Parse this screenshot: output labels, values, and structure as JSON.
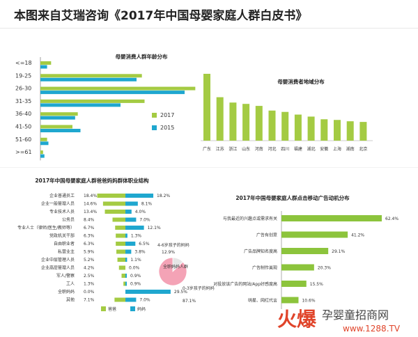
{
  "page": {
    "title": "本图来自艾瑞咨询《2017年中国母婴家庭人群白皮书》"
  },
  "colors": {
    "green": "#a4cb43",
    "cyan": "#1fa7cf",
    "pink": "#f4a3b6",
    "accent_red": "#e0442a"
  },
  "watermark": {
    "brand": "火爆",
    "name": "孕婴童招商网",
    "url": "www.1288.TV"
  },
  "chart_data": [
    {
      "id": "age",
      "type": "bar",
      "orientation": "horizontal",
      "title": "母婴消费人群年龄分布",
      "categories": [
        "<=18",
        "19-25",
        "26-30",
        "31-35",
        "36-40",
        "41-50",
        "51-60",
        ">=61"
      ],
      "series": [
        {
          "name": "2017",
          "color": "#a4cb43",
          "values": [
            4,
            38,
            58,
            39,
            14,
            12,
            2.5,
            1
          ]
        },
        {
          "name": "2015",
          "color": "#1fa7cf",
          "values": [
            2.5,
            36,
            54,
            30,
            13,
            15,
            3,
            1.5
          ]
        }
      ],
      "xlim": [
        0,
        60
      ]
    },
    {
      "id": "region",
      "type": "bar",
      "orientation": "vertical",
      "title": "母婴消费者地域分布",
      "categories": [
        "广东",
        "江苏",
        "浙江",
        "山东",
        "河南",
        "河北",
        "四川",
        "福建",
        "湖北",
        "安徽",
        "上海",
        "湖南",
        "北京"
      ],
      "values": [
        100,
        65,
        57,
        55,
        52,
        45,
        43,
        39,
        36,
        32,
        31,
        29,
        28
      ],
      "color": "#a4cb43",
      "ylim": [
        0,
        100
      ]
    },
    {
      "id": "occupation",
      "type": "bar",
      "orientation": "diverging-horizontal",
      "title": "2017年中国母婴家庭人群爸爸妈妈群体职业结构",
      "categories": [
        "企业普通员工",
        "企业一般管理人员",
        "专业技术人员",
        "公务员",
        "专业人士（律师/医生/教师等）",
        "党政机关干部",
        "自由职业者",
        "私营业主",
        "企业中层管理人员",
        "企业高层管理人员",
        "军人/警察",
        "工人",
        "全职妈妈",
        "其他"
      ],
      "series": [
        {
          "name": "爸爸",
          "color": "#a4cb43",
          "values": [
            18.4,
            14.6,
            13.4,
            8.4,
            6.7,
            6.3,
            6.3,
            5.9,
            5.2,
            4.2,
            2.5,
            1.3,
            0.0,
            7.1
          ]
        },
        {
          "name": "妈妈",
          "color": "#1fa7cf",
          "values": [
            18.2,
            8.1,
            4.0,
            7.0,
            12.1,
            1.3,
            6.5,
            3.8,
            1.1,
            0.0,
            0.9,
            0.9,
            29.5,
            7.0
          ]
        }
      ],
      "value_labels": {
        "left": [
          "18.4%",
          "14.6%",
          "13.4%",
          "8.4%",
          "6.7%",
          "6.3%",
          "6.3%",
          "5.9%",
          "5.2%",
          "4.2%",
          "2.5%",
          "1.3%",
          "0.0%",
          "7.1%"
        ],
        "right": [
          "18.2%",
          "8.1%",
          "4.0%",
          "7.0%",
          "12.1%",
          "1.3%",
          "6.5%",
          "3.8%",
          "1.1%",
          "0.0%",
          "0.9%",
          "0.9%",
          "29.5%",
          "7.0%"
        ]
      },
      "inset_pie": {
        "center_label": "全职妈妈人群",
        "slices": [
          {
            "label": "4-6岁孩子的妈妈",
            "value": 12.9,
            "value_label": "12.9%"
          },
          {
            "label": "0-3岁孩子的妈妈",
            "value": 87.1,
            "value_label": "87.1%"
          }
        ]
      }
    },
    {
      "id": "mobile_ad",
      "type": "bar",
      "orientation": "horizontal",
      "title": "2017年中国母婴家庭人群点击移动广告动机分布",
      "categories": [
        "与我最近的兴趣点或需求有关",
        "广告有创意",
        "广告品牌知名度高",
        "广告制作美观",
        "对投放该广告的网站/App好感度高",
        "明星、网红代言"
      ],
      "values": [
        62.4,
        41.2,
        29.1,
        20.3,
        15.5,
        10.6
      ],
      "value_labels": [
        "62.4%",
        "41.2%",
        "29.1%",
        "20.3%",
        "15.5%",
        "10.6%"
      ],
      "color": "#8cc43c",
      "xlim": [
        0,
        65
      ]
    }
  ]
}
